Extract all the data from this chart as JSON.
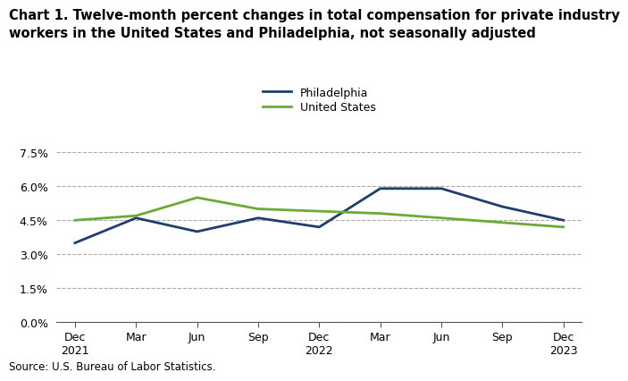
{
  "title_line1": "Chart 1. Twelve-month percent changes in total compensation for private industry",
  "title_line2": "workers in the United States and Philadelphia, not seasonally adjusted",
  "x_labels": [
    "Dec\n2021",
    "Mar",
    "Jun",
    "Sep",
    "Dec\n2022",
    "Mar",
    "Jun",
    "Sep",
    "Dec\n2023"
  ],
  "philadelphia": [
    3.5,
    4.6,
    4.0,
    4.6,
    4.2,
    5.9,
    5.9,
    5.1,
    4.5
  ],
  "united_states": [
    4.5,
    4.7,
    5.5,
    5.0,
    4.9,
    4.8,
    4.6,
    4.4,
    4.2
  ],
  "philly_color": "#1f3e6e",
  "us_color": "#6aaa35",
  "ylim": [
    0.0,
    7.5
  ],
  "yticks": [
    0.0,
    1.5,
    3.0,
    4.5,
    6.0,
    7.5
  ],
  "ytick_labels": [
    "0.0%",
    "1.5%",
    "3.0%",
    "4.5%",
    "6.0%",
    "7.5%"
  ],
  "legend_labels": [
    "Philadelphia",
    "United States"
  ],
  "source": "Source: U.S. Bureau of Labor Statistics.",
  "title_fontsize": 10.5,
  "axis_fontsize": 9,
  "legend_fontsize": 9,
  "source_fontsize": 8.5
}
